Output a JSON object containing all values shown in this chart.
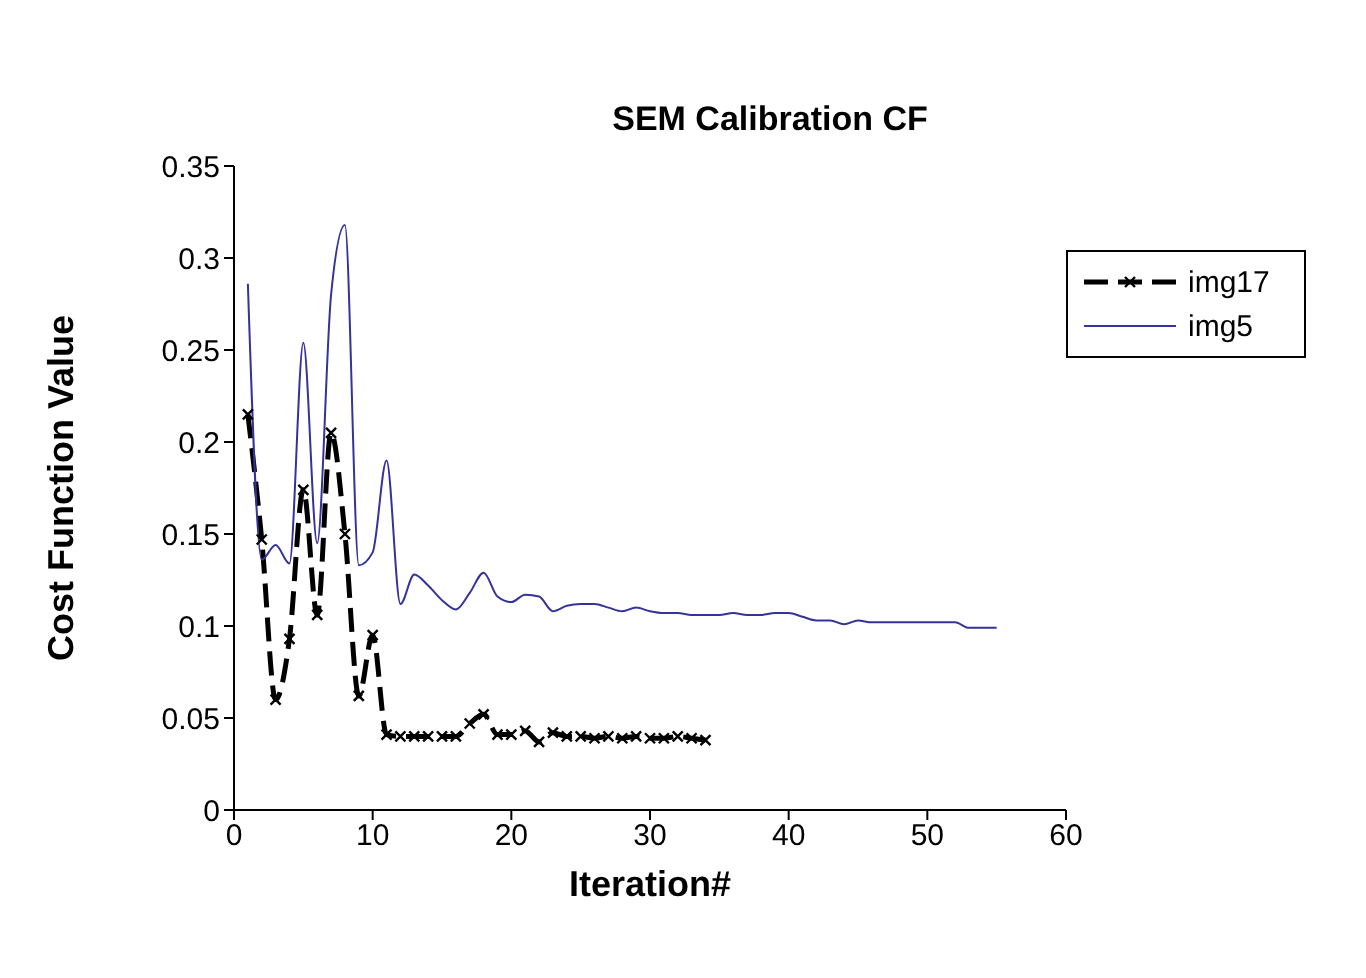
{
  "chart_data": {
    "type": "line",
    "title": "SEM Calibration CF",
    "xlabel": "Iteration#",
    "ylabel": "Cost Function Value",
    "xlim": [
      0,
      60
    ],
    "xticks": [
      0,
      10,
      20,
      30,
      40,
      50,
      60
    ],
    "ylim": [
      0,
      0.35
    ],
    "yticks": [
      0,
      0.05,
      0.1,
      0.15,
      0.2,
      0.25,
      0.3,
      0.35
    ],
    "grid": false,
    "legend": "top right",
    "series": [
      {
        "name": "img17",
        "color": "#000000",
        "line_style": "dashed",
        "marker": "cross",
        "x": [
          1,
          2,
          3,
          4,
          5,
          6,
          7,
          8,
          9,
          10,
          11,
          12,
          13,
          14,
          15,
          16,
          17,
          18,
          19,
          20,
          21,
          22,
          23,
          24,
          25,
          26,
          27,
          28,
          29,
          30,
          31,
          32,
          33,
          34
        ],
        "values": [
          0.215,
          0.147,
          0.06,
          0.093,
          0.174,
          0.106,
          0.205,
          0.15,
          0.062,
          0.095,
          0.041,
          0.04,
          0.04,
          0.04,
          0.04,
          0.04,
          0.047,
          0.052,
          0.041,
          0.041,
          0.043,
          0.037,
          0.042,
          0.04,
          0.04,
          0.039,
          0.04,
          0.039,
          0.04,
          0.039,
          0.039,
          0.04,
          0.039,
          0.038
        ]
      },
      {
        "name": "img5",
        "color": "#333399",
        "line_style": "solid",
        "marker": "none",
        "x": [
          1,
          2,
          3,
          4,
          5,
          6,
          7,
          8,
          9,
          10,
          11,
          12,
          13,
          14,
          15,
          16,
          17,
          18,
          19,
          20,
          21,
          22,
          23,
          24,
          25,
          26,
          27,
          28,
          29,
          30,
          31,
          32,
          33,
          34,
          35,
          36,
          37,
          38,
          39,
          40,
          41,
          42,
          43,
          44,
          45,
          46,
          47,
          48,
          49,
          50,
          51,
          52,
          53,
          54,
          55
        ],
        "values": [
          0.286,
          0.136,
          0.144,
          0.134,
          0.254,
          0.145,
          0.28,
          0.318,
          0.133,
          0.14,
          0.19,
          0.112,
          0.128,
          0.122,
          0.114,
          0.109,
          0.118,
          0.129,
          0.116,
          0.113,
          0.117,
          0.116,
          0.108,
          0.111,
          0.112,
          0.112,
          0.11,
          0.108,
          0.11,
          0.108,
          0.107,
          0.107,
          0.106,
          0.106,
          0.106,
          0.107,
          0.106,
          0.106,
          0.107,
          0.107,
          0.105,
          0.103,
          0.103,
          0.101,
          0.103,
          0.102,
          0.102,
          0.102,
          0.102,
          0.102,
          0.102,
          0.102,
          0.099,
          0.099,
          0.099
        ]
      }
    ]
  }
}
